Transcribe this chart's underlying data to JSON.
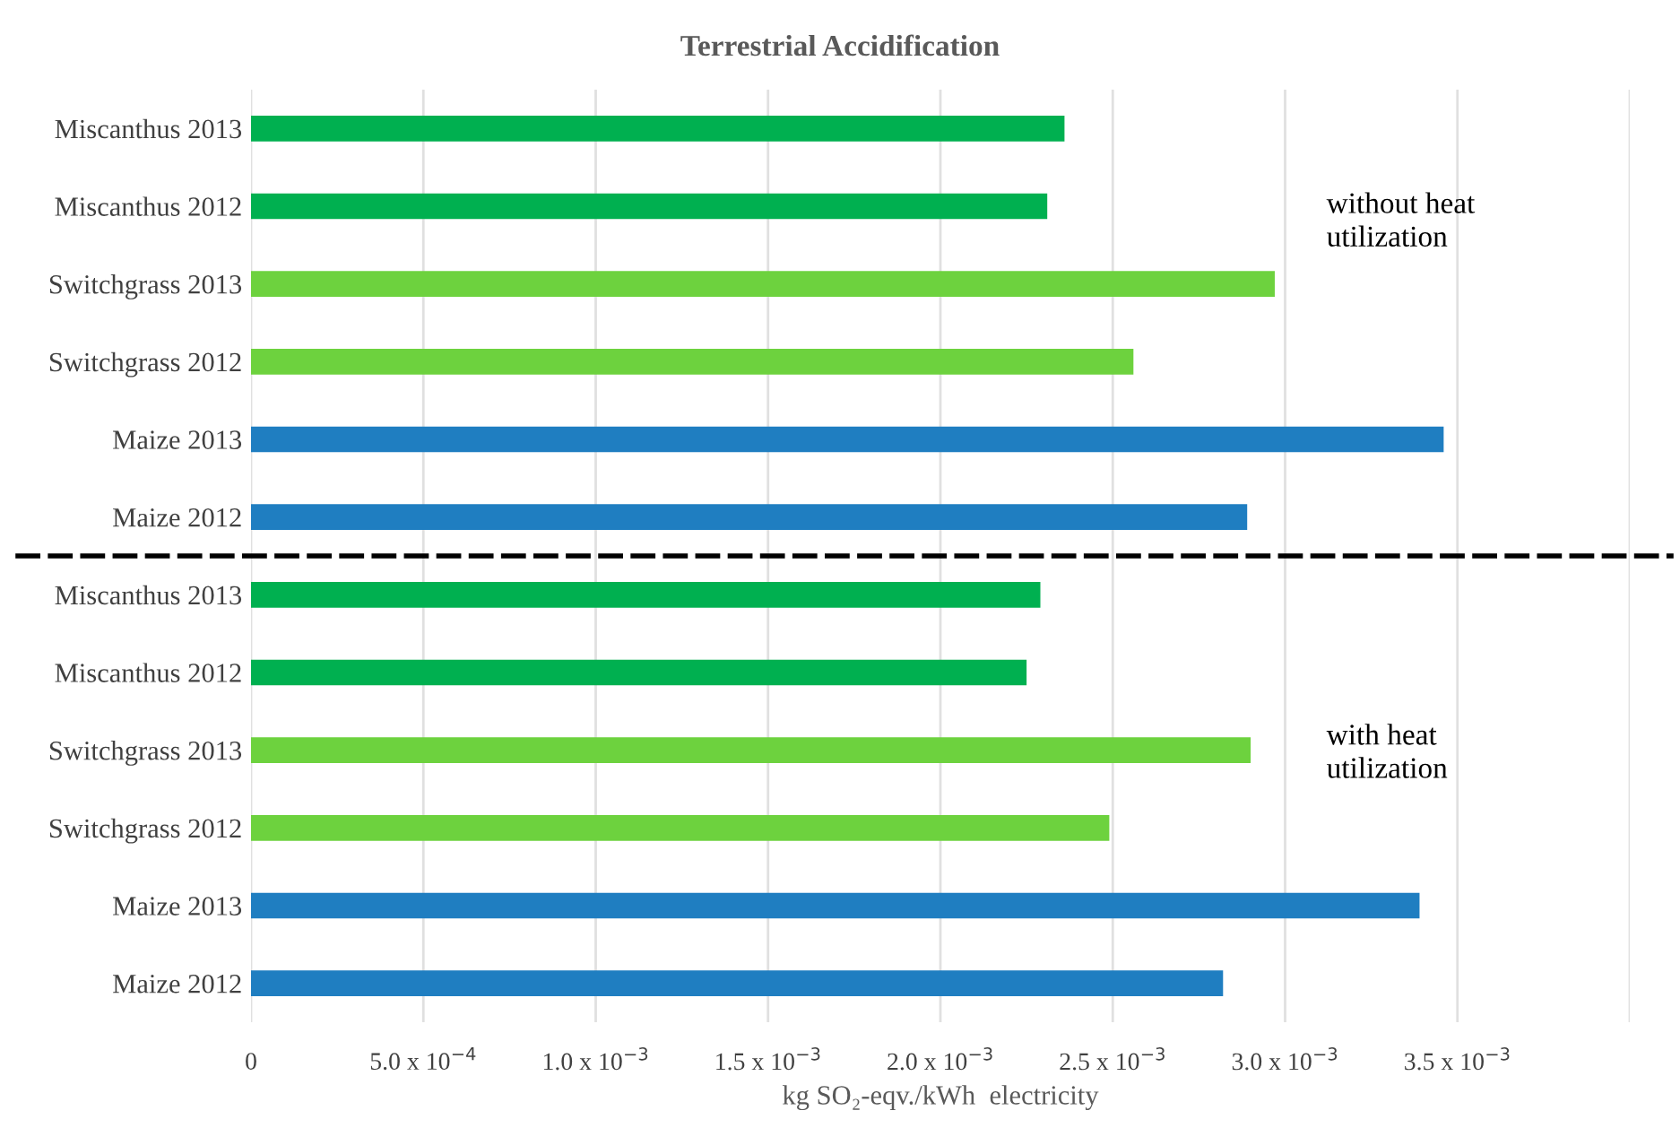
{
  "chart_data": [
    {
      "type": "bar",
      "orientation": "horizontal",
      "title": "Terrestrial Accidification",
      "categories": [
        "Miscanthus 2013",
        "Miscanthus 2012",
        "Switchgrass 2013",
        "Switchgrass 2012",
        "Maize 2013",
        "Maize 2012"
      ],
      "values": [
        0.00236,
        0.00231,
        0.00297,
        0.00256,
        0.00346,
        0.00289
      ],
      "colors": [
        "#00b050",
        "#00b050",
        "#6dd23e",
        "#6dd23e",
        "#1f7ec1",
        "#1f7ec1"
      ],
      "xlim": [
        0,
        0.004
      ],
      "xticks": [
        {
          "value": 0,
          "label": null
        },
        {
          "value": 0.0005,
          "label": null
        },
        {
          "value": 0.001,
          "label": null
        },
        {
          "value": 0.0015,
          "label": null
        },
        {
          "value": 0.002,
          "label": null
        },
        {
          "value": 0.0025,
          "label": null
        },
        {
          "value": 0.003,
          "label": null
        },
        {
          "value": 0.0035,
          "label": null
        },
        {
          "value": 0.004,
          "label": null
        }
      ],
      "tick_labels": "y",
      "grid": "x",
      "annotations": [
        "without heat\nutilization"
      ]
    },
    {
      "type": "bar",
      "orientation": "horizontal",
      "xlabel": "kg SO₂-eqv./kWh  electricity",
      "categories": [
        "Miscanthus 2013",
        "Miscanthus 2012",
        "Switchgrass 2013",
        "Switchgrass 2012",
        "Maize 2013",
        "Maize 2012"
      ],
      "values": [
        0.00229,
        0.00225,
        0.0029,
        0.00249,
        0.00339,
        0.00282
      ],
      "colors": [
        "#00b050",
        "#00b050",
        "#6dd23e",
        "#6dd23e",
        "#1f7ec1",
        "#1f7ec1"
      ],
      "xlim": [
        0,
        0.004
      ],
      "xticks": [
        0,
        {
          "value": 0.0005,
          "label": "5.0 x 10$^{−4}$"
        },
        {
          "value": 0.001,
          "label": "1.0 x 10$^{−3}$"
        },
        {
          "value": 0.0015,
          "label": "1.5 x 10$^{−3}$"
        },
        {
          "value": 0.002,
          "label": "2.0 x 10$^{−3}$"
        },
        {
          "value": 0.0025,
          "label": "2.5 x 10$^{−3}$"
        },
        {
          "value": 0.003,
          "label": "3.0 x 10$^{−3}$"
        },
        {
          "value": 0.0035,
          "label": "3.5 x 10$^{−3}$"
        },
        {
          "value": 0.004,
          "label": null
        }
      ],
      "grid": "x",
      "annotations": [
        "with heat\nutilization"
      ]
    }
  ]
}
